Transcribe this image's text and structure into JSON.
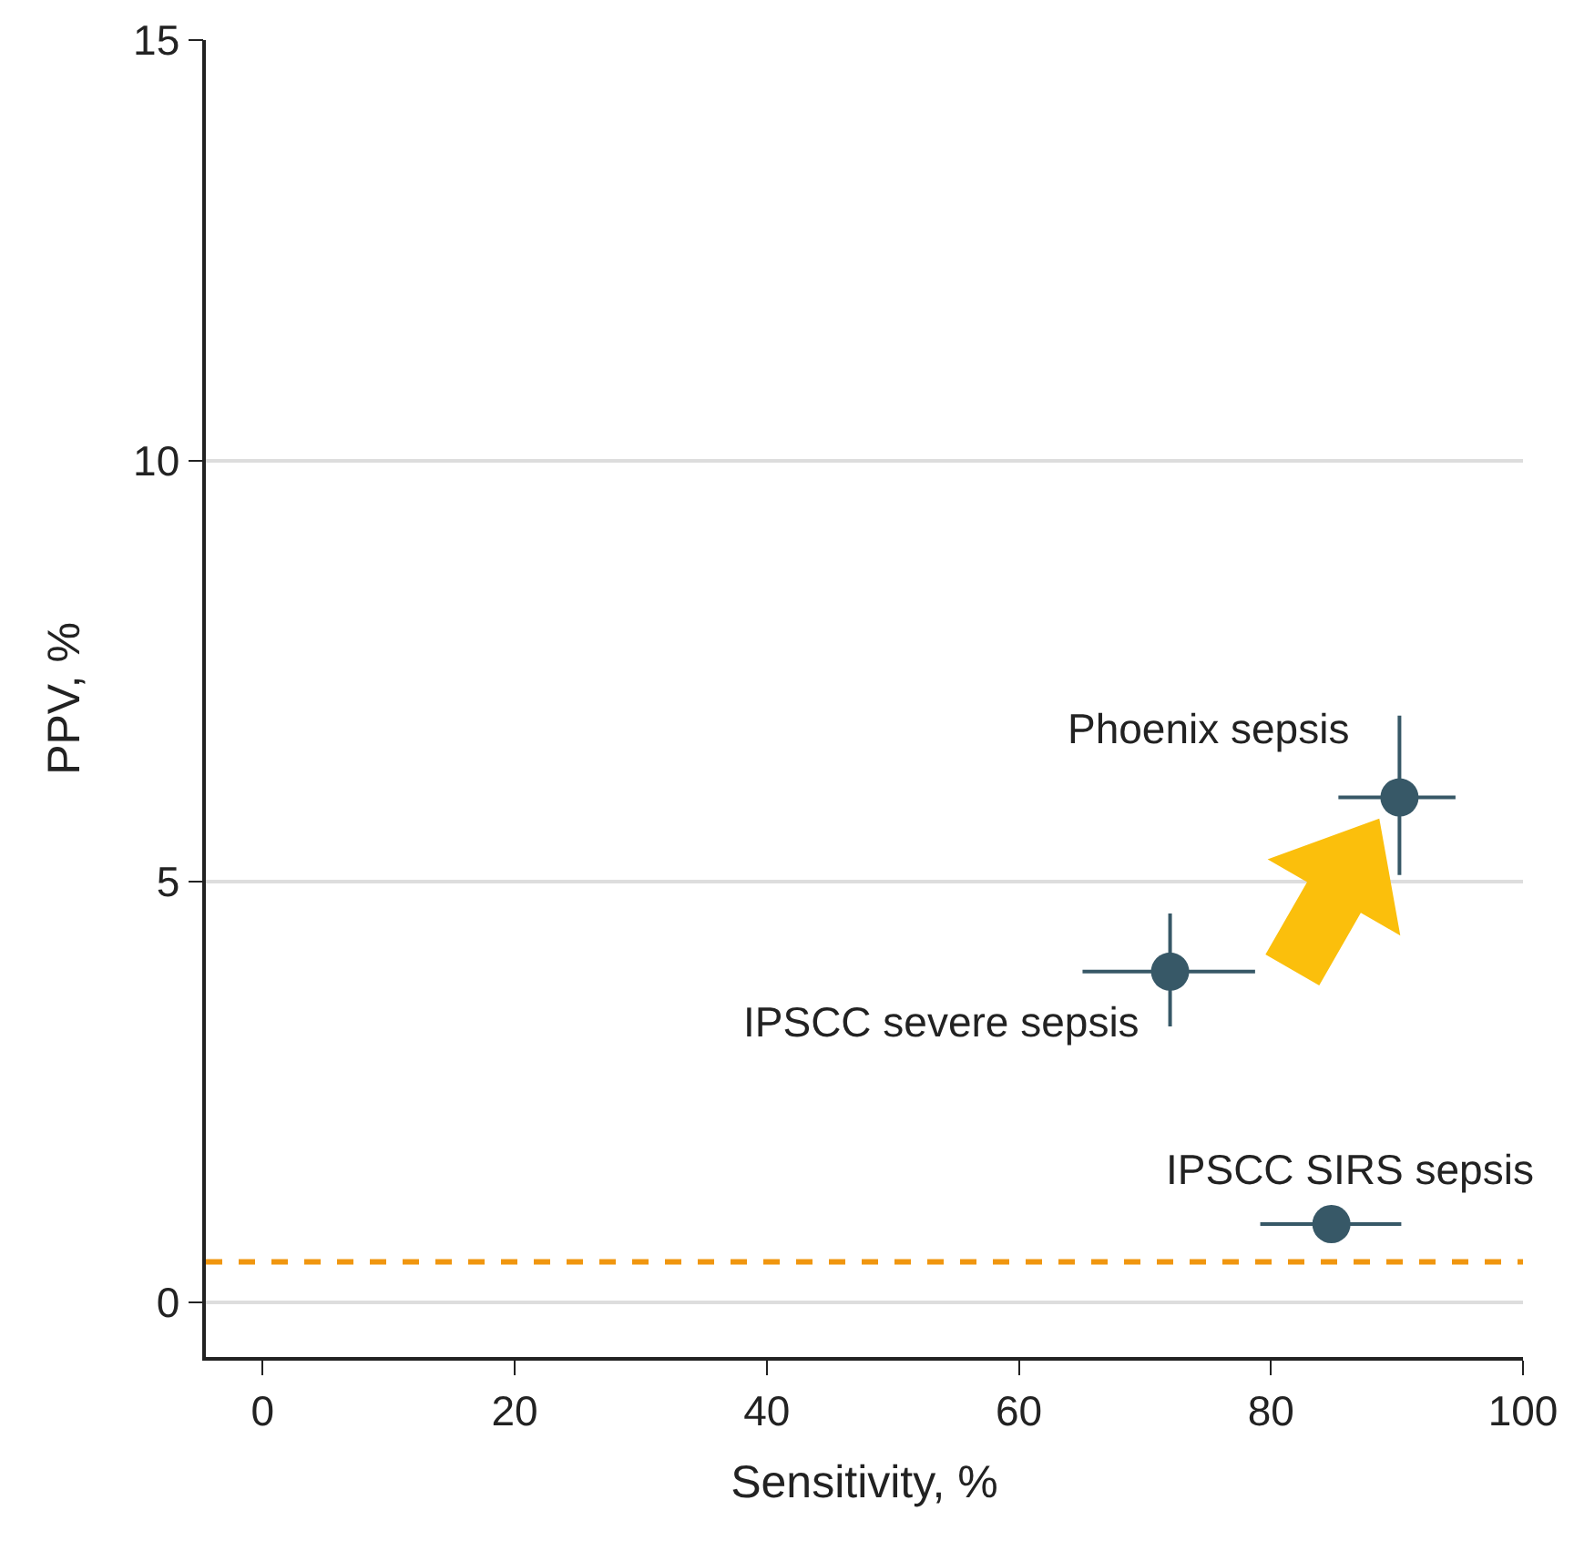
{
  "chart_data": {
    "type": "scatter",
    "xlabel": "Sensitivity, %",
    "ylabel": "PPV, %",
    "x": [
      90.2,
      72.0,
      84.8
    ],
    "series": [
      {
        "color": "#375867",
        "values": [
          6.0,
          3.93,
          0.93
        ],
        "xerrors": [
          [
            85.5,
            94.5
          ],
          [
            65.2,
            78.6
          ],
          [
            79.3,
            90.2
          ]
        ],
        "errors": [
          [
            5.1,
            6.95
          ],
          [
            3.3,
            4.6
          ],
          null
        ]
      }
    ],
    "annotations": [
      {
        "text": "Phoenix sepsis",
        "x": 90.2,
        "y": 6.0
      },
      {
        "text": "IPSCC severe sepsis",
        "x": 72.0,
        "y": 3.93
      },
      {
        "text": "IPSCC SIRS sepsis",
        "x": 84.8,
        "y": 0.93
      }
    ],
    "ref_lines": [
      {
        "axis": "y",
        "value": 0.48,
        "color": "#f0960f",
        "line_style": "dashed"
      }
    ],
    "xlim": [
      -4.5,
      100
    ],
    "xticks": [
      0,
      20,
      40,
      60,
      80,
      100
    ],
    "ylim": [
      -0.65,
      15
    ],
    "yticks": [
      0,
      5,
      10,
      15
    ],
    "grid": "y",
    "marker": "circle"
  }
}
